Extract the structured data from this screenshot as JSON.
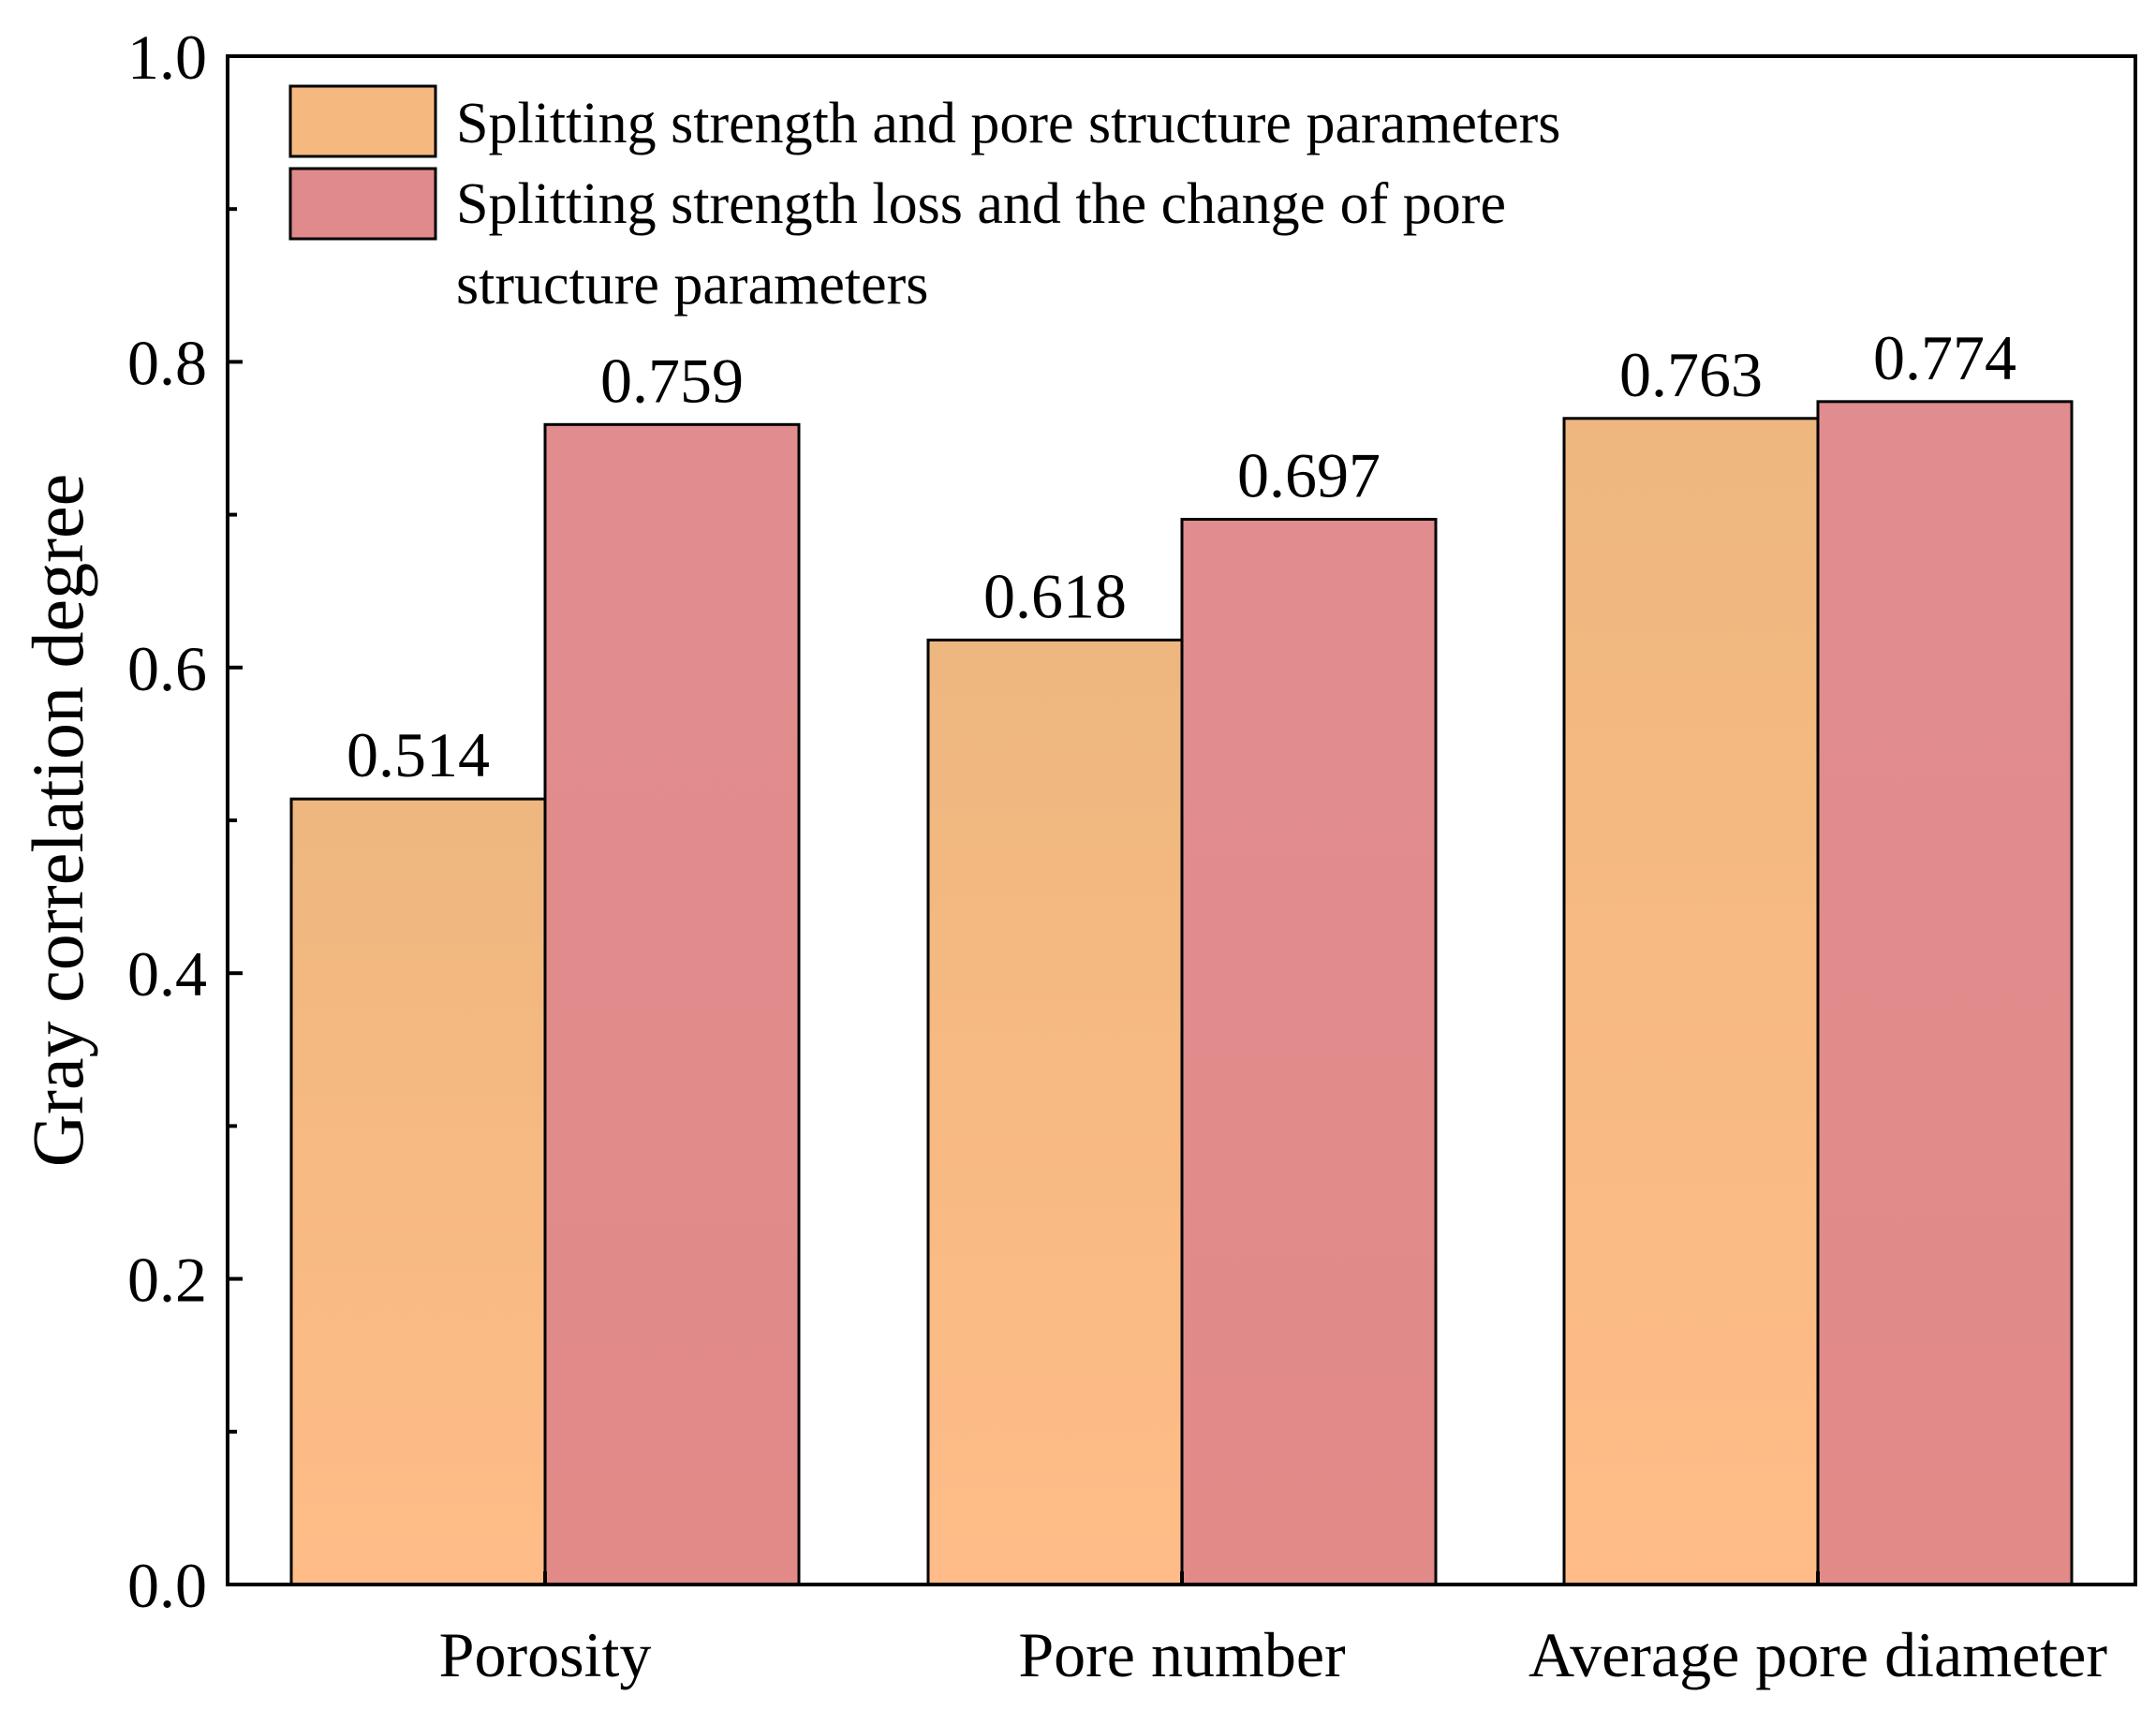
{
  "chart_data": {
    "type": "bar",
    "title": "",
    "xlabel": "",
    "ylabel": "Gray correlation degree",
    "ylim": [
      0,
      1.0
    ],
    "yticks": [
      "0.0",
      "0.2",
      "0.4",
      "0.6",
      "0.8",
      "1.0"
    ],
    "categories": [
      "Porosity",
      "Pore number",
      "Average pore diameter"
    ],
    "series": [
      {
        "name": "Splitting strength and pore structure parameters",
        "values": [
          0.514,
          0.618,
          0.763
        ],
        "labels": [
          "0.514",
          "0.618",
          "0.763"
        ],
        "color": "#F5B97F"
      },
      {
        "name": "Splitting strength loss and the change of pore structure parameters",
        "legend_lines": [
          "Splitting strength loss and the change of pore",
          "structure parameters"
        ],
        "values": [
          0.759,
          0.697,
          0.774
        ],
        "labels": [
          "0.759",
          "0.697",
          "0.774"
        ],
        "color": "#E08A8C"
      }
    ],
    "legend_position": "top-left",
    "grid": false
  }
}
